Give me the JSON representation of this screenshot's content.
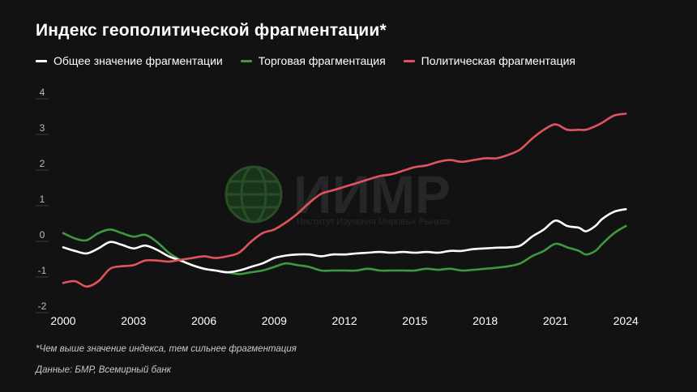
{
  "title": "Индекс геополитической фрагментации*",
  "footnote": "*Чем выше значение индекса, тем сильнее фрагментация",
  "source": "Данные: БМР, Всемирный банк",
  "watermark": {
    "name": "ИИМР",
    "subtitle": "Институт Изучения Мировых Рынков"
  },
  "colors": {
    "background": "#121212",
    "overall": "#ffffff",
    "trade": "#3f9a3f",
    "political": "#e0545e",
    "gridline": "#3a3a3a",
    "tick_label": "#bdbdbd"
  },
  "legend": [
    {
      "label": "Общее значение фрагментации",
      "color": "#ffffff"
    },
    {
      "label": "Торговая фрагментация",
      "color": "#3f9a3f"
    },
    {
      "label": "Политическая фрагментация",
      "color": "#e0545e"
    }
  ],
  "chart_data": {
    "type": "line",
    "title": "Индекс геополитической фрагментации*",
    "xlabel": "",
    "ylabel": "",
    "xlim": [
      2000,
      2024.2
    ],
    "ylim": [
      -2,
      4
    ],
    "x_ticks": [
      2000,
      2003,
      2006,
      2009,
      2012,
      2015,
      2018,
      2021,
      2024
    ],
    "y_ticks": [
      -2,
      -1,
      0,
      1,
      2,
      3,
      4
    ],
    "grid": false,
    "legend_position": "top",
    "series": [
      {
        "name": "Общее значение фрагментации",
        "color": "#ffffff",
        "x": [
          2000,
          2000.5,
          2001,
          2001.5,
          2002,
          2002.5,
          2003,
          2003.5,
          2004,
          2004.5,
          2005,
          2005.5,
          2006,
          2006.5,
          2007,
          2007.5,
          2008,
          2008.5,
          2009,
          2009.5,
          2010,
          2010.5,
          2011,
          2011.5,
          2012,
          2012.5,
          2013,
          2013.5,
          2014,
          2014.5,
          2015,
          2015.5,
          2016,
          2016.5,
          2017,
          2017.5,
          2018,
          2018.5,
          2019,
          2019.5,
          2020,
          2020.5,
          2021,
          2021.5,
          2022,
          2022.3,
          2022.7,
          2023,
          2023.5,
          2024
        ],
        "values": [
          -0.35,
          -0.45,
          -0.52,
          -0.38,
          -0.2,
          -0.28,
          -0.38,
          -0.3,
          -0.42,
          -0.6,
          -0.72,
          -0.85,
          -0.95,
          -1.0,
          -1.05,
          -1.0,
          -0.9,
          -0.8,
          -0.65,
          -0.58,
          -0.55,
          -0.55,
          -0.6,
          -0.55,
          -0.55,
          -0.52,
          -0.5,
          -0.48,
          -0.5,
          -0.48,
          -0.5,
          -0.48,
          -0.5,
          -0.45,
          -0.45,
          -0.4,
          -0.38,
          -0.36,
          -0.35,
          -0.3,
          -0.05,
          0.15,
          0.4,
          0.25,
          0.2,
          0.1,
          0.25,
          0.45,
          0.65,
          0.72
        ]
      },
      {
        "name": "Торговая фрагментация",
        "color": "#3f9a3f",
        "x": [
          2000,
          2000.5,
          2001,
          2001.5,
          2002,
          2002.5,
          2003,
          2003.5,
          2004,
          2004.5,
          2005,
          2005.5,
          2006,
          2006.5,
          2007,
          2007.5,
          2008,
          2008.5,
          2009,
          2009.5,
          2010,
          2010.5,
          2011,
          2011.5,
          2012,
          2012.5,
          2013,
          2013.5,
          2014,
          2014.5,
          2015,
          2015.5,
          2016,
          2016.5,
          2017,
          2017.5,
          2018,
          2018.5,
          2019,
          2019.5,
          2020,
          2020.5,
          2021,
          2021.5,
          2022,
          2022.3,
          2022.7,
          2023,
          2023.5,
          2024
        ],
        "values": [
          0.05,
          -0.1,
          -0.15,
          0.05,
          0.15,
          0.05,
          -0.05,
          0.0,
          -0.2,
          -0.5,
          -0.7,
          -0.85,
          -0.95,
          -1.0,
          -1.05,
          -1.1,
          -1.05,
          -1.0,
          -0.9,
          -0.8,
          -0.85,
          -0.9,
          -1.0,
          -1.0,
          -1.0,
          -1.0,
          -0.95,
          -1.0,
          -1.0,
          -1.0,
          -1.0,
          -0.95,
          -0.98,
          -0.95,
          -1.0,
          -0.98,
          -0.95,
          -0.92,
          -0.88,
          -0.8,
          -0.6,
          -0.45,
          -0.25,
          -0.35,
          -0.45,
          -0.55,
          -0.45,
          -0.25,
          0.05,
          0.25
        ]
      },
      {
        "name": "Политическая фрагментация",
        "color": "#e0545e",
        "x": [
          2000,
          2000.5,
          2001,
          2001.5,
          2002,
          2002.5,
          2003,
          2003.5,
          2004,
          2004.5,
          2005,
          2005.5,
          2006,
          2006.5,
          2007,
          2007.5,
          2008,
          2008.5,
          2009,
          2009.5,
          2010,
          2010.5,
          2011,
          2011.5,
          2012,
          2012.5,
          2013,
          2013.5,
          2014,
          2014.5,
          2015,
          2015.5,
          2016,
          2016.5,
          2017,
          2017.5,
          2018,
          2018.5,
          2019,
          2019.5,
          2020,
          2020.5,
          2021,
          2021.5,
          2022,
          2022.3,
          2022.7,
          2023,
          2023.5,
          2024
        ],
        "values": [
          -1.35,
          -1.3,
          -1.45,
          -1.3,
          -0.95,
          -0.88,
          -0.85,
          -0.72,
          -0.72,
          -0.75,
          -0.7,
          -0.65,
          -0.6,
          -0.65,
          -0.6,
          -0.5,
          -0.2,
          0.05,
          0.15,
          0.35,
          0.6,
          0.9,
          1.15,
          1.25,
          1.35,
          1.45,
          1.55,
          1.65,
          1.7,
          1.8,
          1.9,
          1.95,
          2.05,
          2.1,
          2.05,
          2.1,
          2.15,
          2.15,
          2.25,
          2.4,
          2.7,
          2.95,
          3.1,
          2.95,
          2.95,
          2.95,
          3.05,
          3.15,
          3.35,
          3.4
        ]
      }
    ]
  }
}
